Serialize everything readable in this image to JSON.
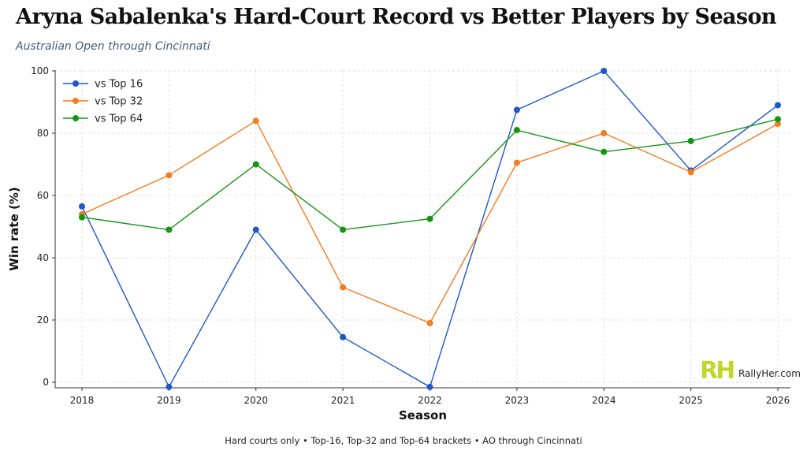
{
  "title": "Aryna Sabalenka's Hard-Court Record vs Better Players by Season",
  "subtitle": "Australian Open through Cincinnati",
  "footnote": "Hard courts only • Top-16, Top-32 and Top-64 brackets • AO through Cincinnati",
  "brand": {
    "logo_text": "RH",
    "name": "RallyHer.com",
    "logo_color": "#c3d62b"
  },
  "chart_data": {
    "type": "line",
    "x": [
      "2018",
      "2019",
      "2020",
      "2021",
      "2022",
      "2023",
      "2024",
      "2025",
      "2026"
    ],
    "series": [
      {
        "name": "vs Top 16",
        "color": "#1f57c9",
        "values": [
          56.5,
          -1.5,
          49,
          14.5,
          -1.5,
          87.5,
          100,
          68,
          89
        ]
      },
      {
        "name": "vs Top 32",
        "color": "#f57c1f",
        "values": [
          54,
          66.5,
          84,
          30.5,
          19,
          70.5,
          80,
          67.5,
          83
        ]
      },
      {
        "name": "vs Top 64",
        "color": "#149414",
        "values": [
          53,
          49,
          70,
          49,
          52.5,
          81,
          74,
          77.5,
          84.5
        ]
      }
    ],
    "xlabel": "Season",
    "ylabel": "Win rate (%)",
    "ylim": [
      -1.5,
      100
    ],
    "yticks": [
      0,
      20,
      40,
      60,
      80,
      100
    ],
    "grid": true,
    "legend_position": "top-left"
  }
}
